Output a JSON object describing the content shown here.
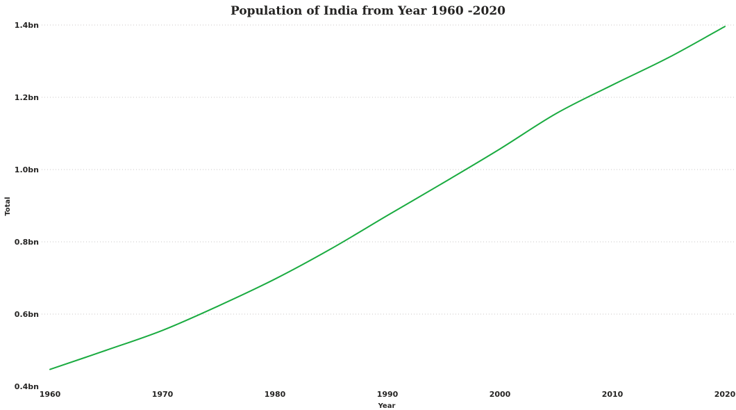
{
  "chart_data": {
    "type": "line",
    "title": "Population of India from Year 1960 -2020",
    "xlabel": "Year",
    "ylabel": "Total",
    "xlim": [
      1960,
      2020
    ],
    "ylim": [
      400000000,
      1400000000
    ],
    "x_ticks": [
      1960,
      1970,
      1980,
      1990,
      2000,
      2010,
      2020
    ],
    "x_tick_labels": [
      "1960",
      "1970",
      "1980",
      "1990",
      "2000",
      "2010",
      "2020"
    ],
    "y_ticks": [
      400000000,
      600000000,
      800000000,
      1000000000,
      1200000000,
      1400000000
    ],
    "y_tick_labels": [
      "0.4bn",
      "0.6bn",
      "0.8bn",
      "1.0bn",
      "1.2bn",
      "1.4bn"
    ],
    "grid": true,
    "legend": "none",
    "series": [
      {
        "color": "#1aab40",
        "x": [
          1960,
          1965,
          1970,
          1975,
          1980,
          1985,
          1990,
          1995,
          2000,
          2005,
          2010,
          2015,
          2020
        ],
        "y": [
          447000000,
          500000000,
          555000000,
          623000000,
          697000000,
          781000000,
          873000000,
          964000000,
          1057000000,
          1155000000,
          1234000000,
          1310000000,
          1396000000
        ]
      }
    ]
  }
}
